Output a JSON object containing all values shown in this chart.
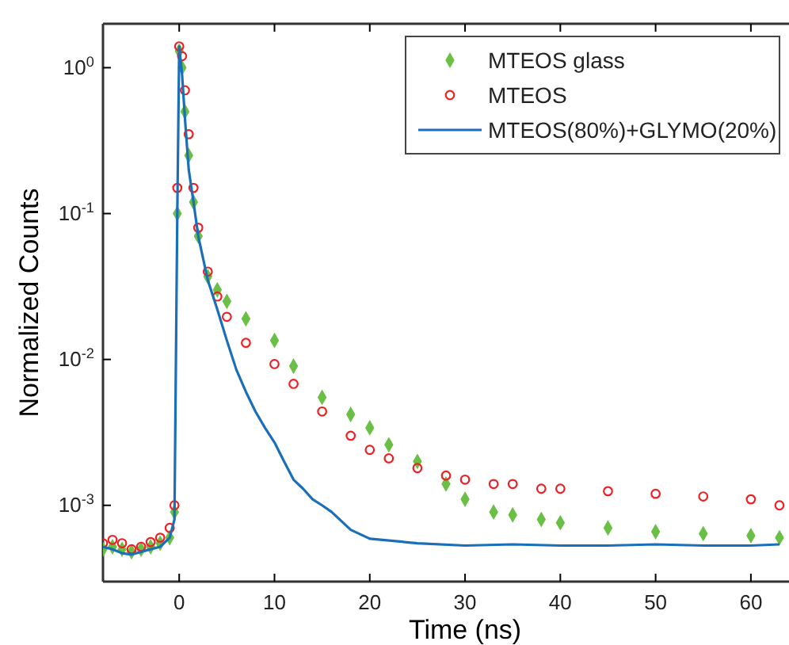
{
  "chart_data": {
    "type": "scatter",
    "xlabel": "Time (ns)",
    "ylabel": "Normalized Counts",
    "log": "y",
    "xlim": [
      -8,
      64
    ],
    "ylim": [
      0.0003,
      2
    ],
    "xticks": [
      0,
      10,
      20,
      30,
      40,
      50,
      60
    ],
    "yticks": [
      {
        "value": 0.001,
        "label": "10$^{-3}$"
      },
      {
        "value": 0.01,
        "label": "10$^{-2}$"
      },
      {
        "value": 0.1,
        "label": "10$^{-1}$"
      },
      {
        "value": 1,
        "label": "10$^{0}$"
      }
    ],
    "legend": "top right",
    "series": [
      {
        "name": "MTEOS glass",
        "marker": "diamond",
        "color": "#6abf45",
        "x": [
          -8,
          -7,
          -6,
          -5,
          -4,
          -3,
          -2,
          -1,
          -0.5,
          -0.2,
          0,
          0.3,
          0.6,
          1,
          1.5,
          2,
          3,
          4,
          5,
          7,
          10,
          12,
          15,
          18,
          20,
          22,
          25,
          28,
          30,
          33,
          35,
          38,
          40,
          45,
          50,
          55,
          60,
          63
        ],
        "values": [
          0.0005,
          0.00052,
          0.0005,
          0.00048,
          0.0005,
          0.00052,
          0.00055,
          0.0006,
          0.0009,
          0.1,
          1.3,
          1.0,
          0.5,
          0.25,
          0.12,
          0.07,
          0.037,
          0.03,
          0.025,
          0.019,
          0.0135,
          0.009,
          0.0055,
          0.0042,
          0.0034,
          0.0026,
          0.002,
          0.0014,
          0.0011,
          0.0009,
          0.00086,
          0.0008,
          0.00076,
          0.0007,
          0.00066,
          0.00064,
          0.00062,
          0.0006
        ]
      },
      {
        "name": "MTEOS",
        "marker": "circle",
        "color": "#ee2024",
        "x": [
          -8,
          -7,
          -6,
          -5,
          -4,
          -3,
          -2,
          -1,
          -0.5,
          -0.2,
          0,
          0.3,
          0.6,
          1,
          1.5,
          2,
          3,
          4,
          5,
          7,
          10,
          12,
          15,
          18,
          20,
          22,
          25,
          28,
          30,
          33,
          35,
          38,
          40,
          45,
          50,
          55,
          60,
          63
        ],
        "values": [
          0.00055,
          0.00058,
          0.00055,
          0.0005,
          0.00052,
          0.00056,
          0.0006,
          0.0007,
          0.001,
          0.15,
          1.4,
          1.2,
          0.7,
          0.35,
          0.15,
          0.08,
          0.04,
          0.027,
          0.0196,
          0.013,
          0.0093,
          0.0068,
          0.0044,
          0.003,
          0.0024,
          0.0021,
          0.0018,
          0.0016,
          0.0015,
          0.0014,
          0.0014,
          0.0013,
          0.0013,
          0.00125,
          0.0012,
          0.00115,
          0.0011,
          0.001
        ]
      },
      {
        "name": "MTEOS(80%)+GLYMO(20%)",
        "type": "line",
        "color": "#1a6fb8",
        "x": [
          -8,
          -7,
          -6,
          -5,
          -4,
          -3,
          -2,
          -1,
          -0.5,
          -0.2,
          0,
          0.3,
          0.6,
          1,
          1.5,
          2,
          3,
          4,
          5,
          6,
          7,
          8,
          9,
          10,
          11,
          12,
          13,
          14,
          15,
          16,
          18,
          20,
          25,
          30,
          35,
          40,
          45,
          50,
          55,
          60,
          63
        ],
        "values": [
          0.00052,
          0.0005,
          0.00047,
          0.00046,
          0.00048,
          0.0005,
          0.00052,
          0.0006,
          0.0008,
          0.1,
          1.4,
          0.9,
          0.45,
          0.2,
          0.12,
          0.07,
          0.035,
          0.022,
          0.0135,
          0.0085,
          0.006,
          0.0044,
          0.0034,
          0.0027,
          0.002,
          0.0015,
          0.0013,
          0.0011,
          0.001,
          0.0009,
          0.00068,
          0.00059,
          0.00055,
          0.00053,
          0.00054,
          0.00053,
          0.00053,
          0.00054,
          0.00053,
          0.00053,
          0.00054
        ]
      }
    ]
  }
}
